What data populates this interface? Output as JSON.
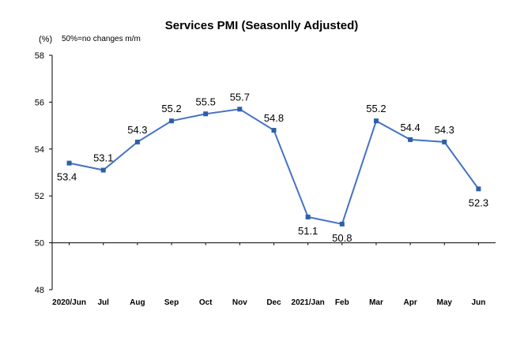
{
  "chart_data": {
    "type": "line",
    "title": "Services PMI (Seasonlly Adjusted)",
    "unit": "(%)",
    "note": "50%=no changes  m/m",
    "categories": [
      "2020/Jun",
      "Jul",
      "Aug",
      "Sep",
      "Oct",
      "Nov",
      "Dec",
      "2021/Jan",
      "Feb",
      "Mar",
      "Apr",
      "May",
      "Jun"
    ],
    "series": [
      {
        "values": [
          53.4,
          53.1,
          54.3,
          55.2,
          55.5,
          55.7,
          54.8,
          51.1,
          50.8,
          55.2,
          54.4,
          54.3,
          52.3
        ]
      }
    ],
    "data_labels": [
      "53.4",
      "53.1",
      "54.3",
      "55.2",
      "55.5",
      "55.7",
      "54.8",
      "51.1",
      "50.8",
      "55.2",
      "54.4",
      "54.3",
      "52.3"
    ],
    "yticks": [
      "48",
      "50",
      "52",
      "54",
      "56",
      "58"
    ],
    "ylim": [
      48,
      58
    ],
    "baseline": 50,
    "grid": false,
    "colors": {
      "line": "#4472C4",
      "marker": "#2E5FA8"
    }
  }
}
